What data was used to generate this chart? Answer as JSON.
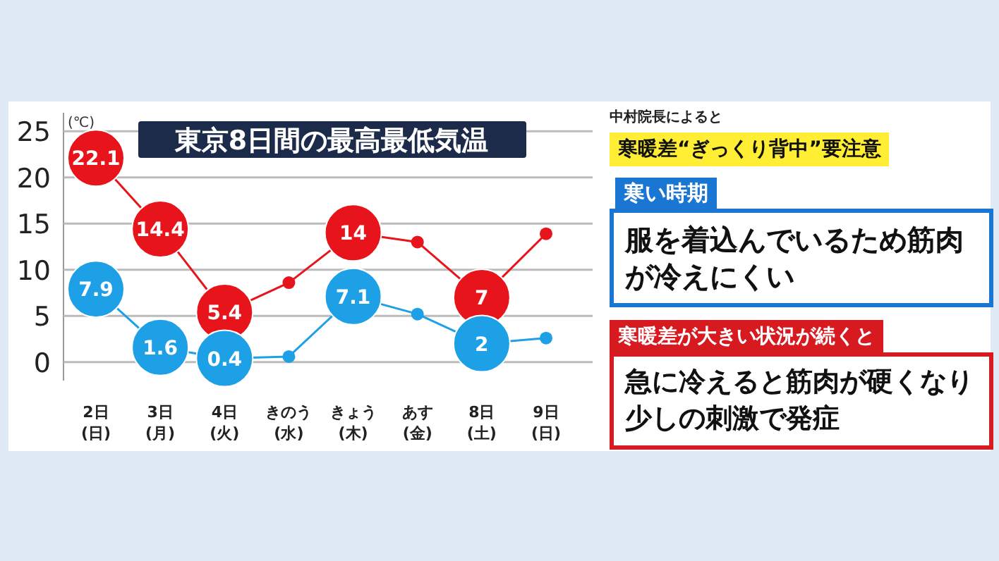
{
  "chart_data": {
    "type": "line",
    "title": "東京8日間の最高最低気温",
    "ylabel": "(℃)",
    "categories": [
      "2日\n(日)",
      "3日\n(月)",
      "4日\n(火)",
      "きのう\n(水)",
      "きょう\n(木)",
      "あす\n(金)",
      "8日\n(土)",
      "9日\n(日)"
    ],
    "series": [
      {
        "color": "#e8141c",
        "values": [
          22.1,
          14.4,
          5.4,
          8.6,
          14,
          13,
          7,
          13.9
        ],
        "value_labels": [
          "22.1",
          "14.4",
          "5.4",
          null,
          "14",
          null,
          "7",
          null
        ]
      },
      {
        "color": "#1ea0e6",
        "values": [
          7.9,
          1.6,
          0.4,
          0.6,
          7.1,
          5.2,
          2,
          2.6
        ],
        "value_labels": [
          "7.9",
          "1.6",
          "0.4",
          null,
          "7.1",
          null,
          "2",
          null
        ]
      }
    ],
    "ylim": [
      -2,
      27
    ],
    "yticks": [
      0,
      5,
      10,
      15,
      20,
      25
    ],
    "grid": "y",
    "marker": "circle",
    "annotations": [
      "中村院長によると",
      "寒暖差“ぎっくり背中”要注意",
      "寒い時期",
      "服を着込んでいるため筋肉が冷えにくい",
      "寒暖差が大きい状況が続くと",
      "急に冷えると筋肉が硬くなり少しの刺激で発症"
    ]
  }
}
